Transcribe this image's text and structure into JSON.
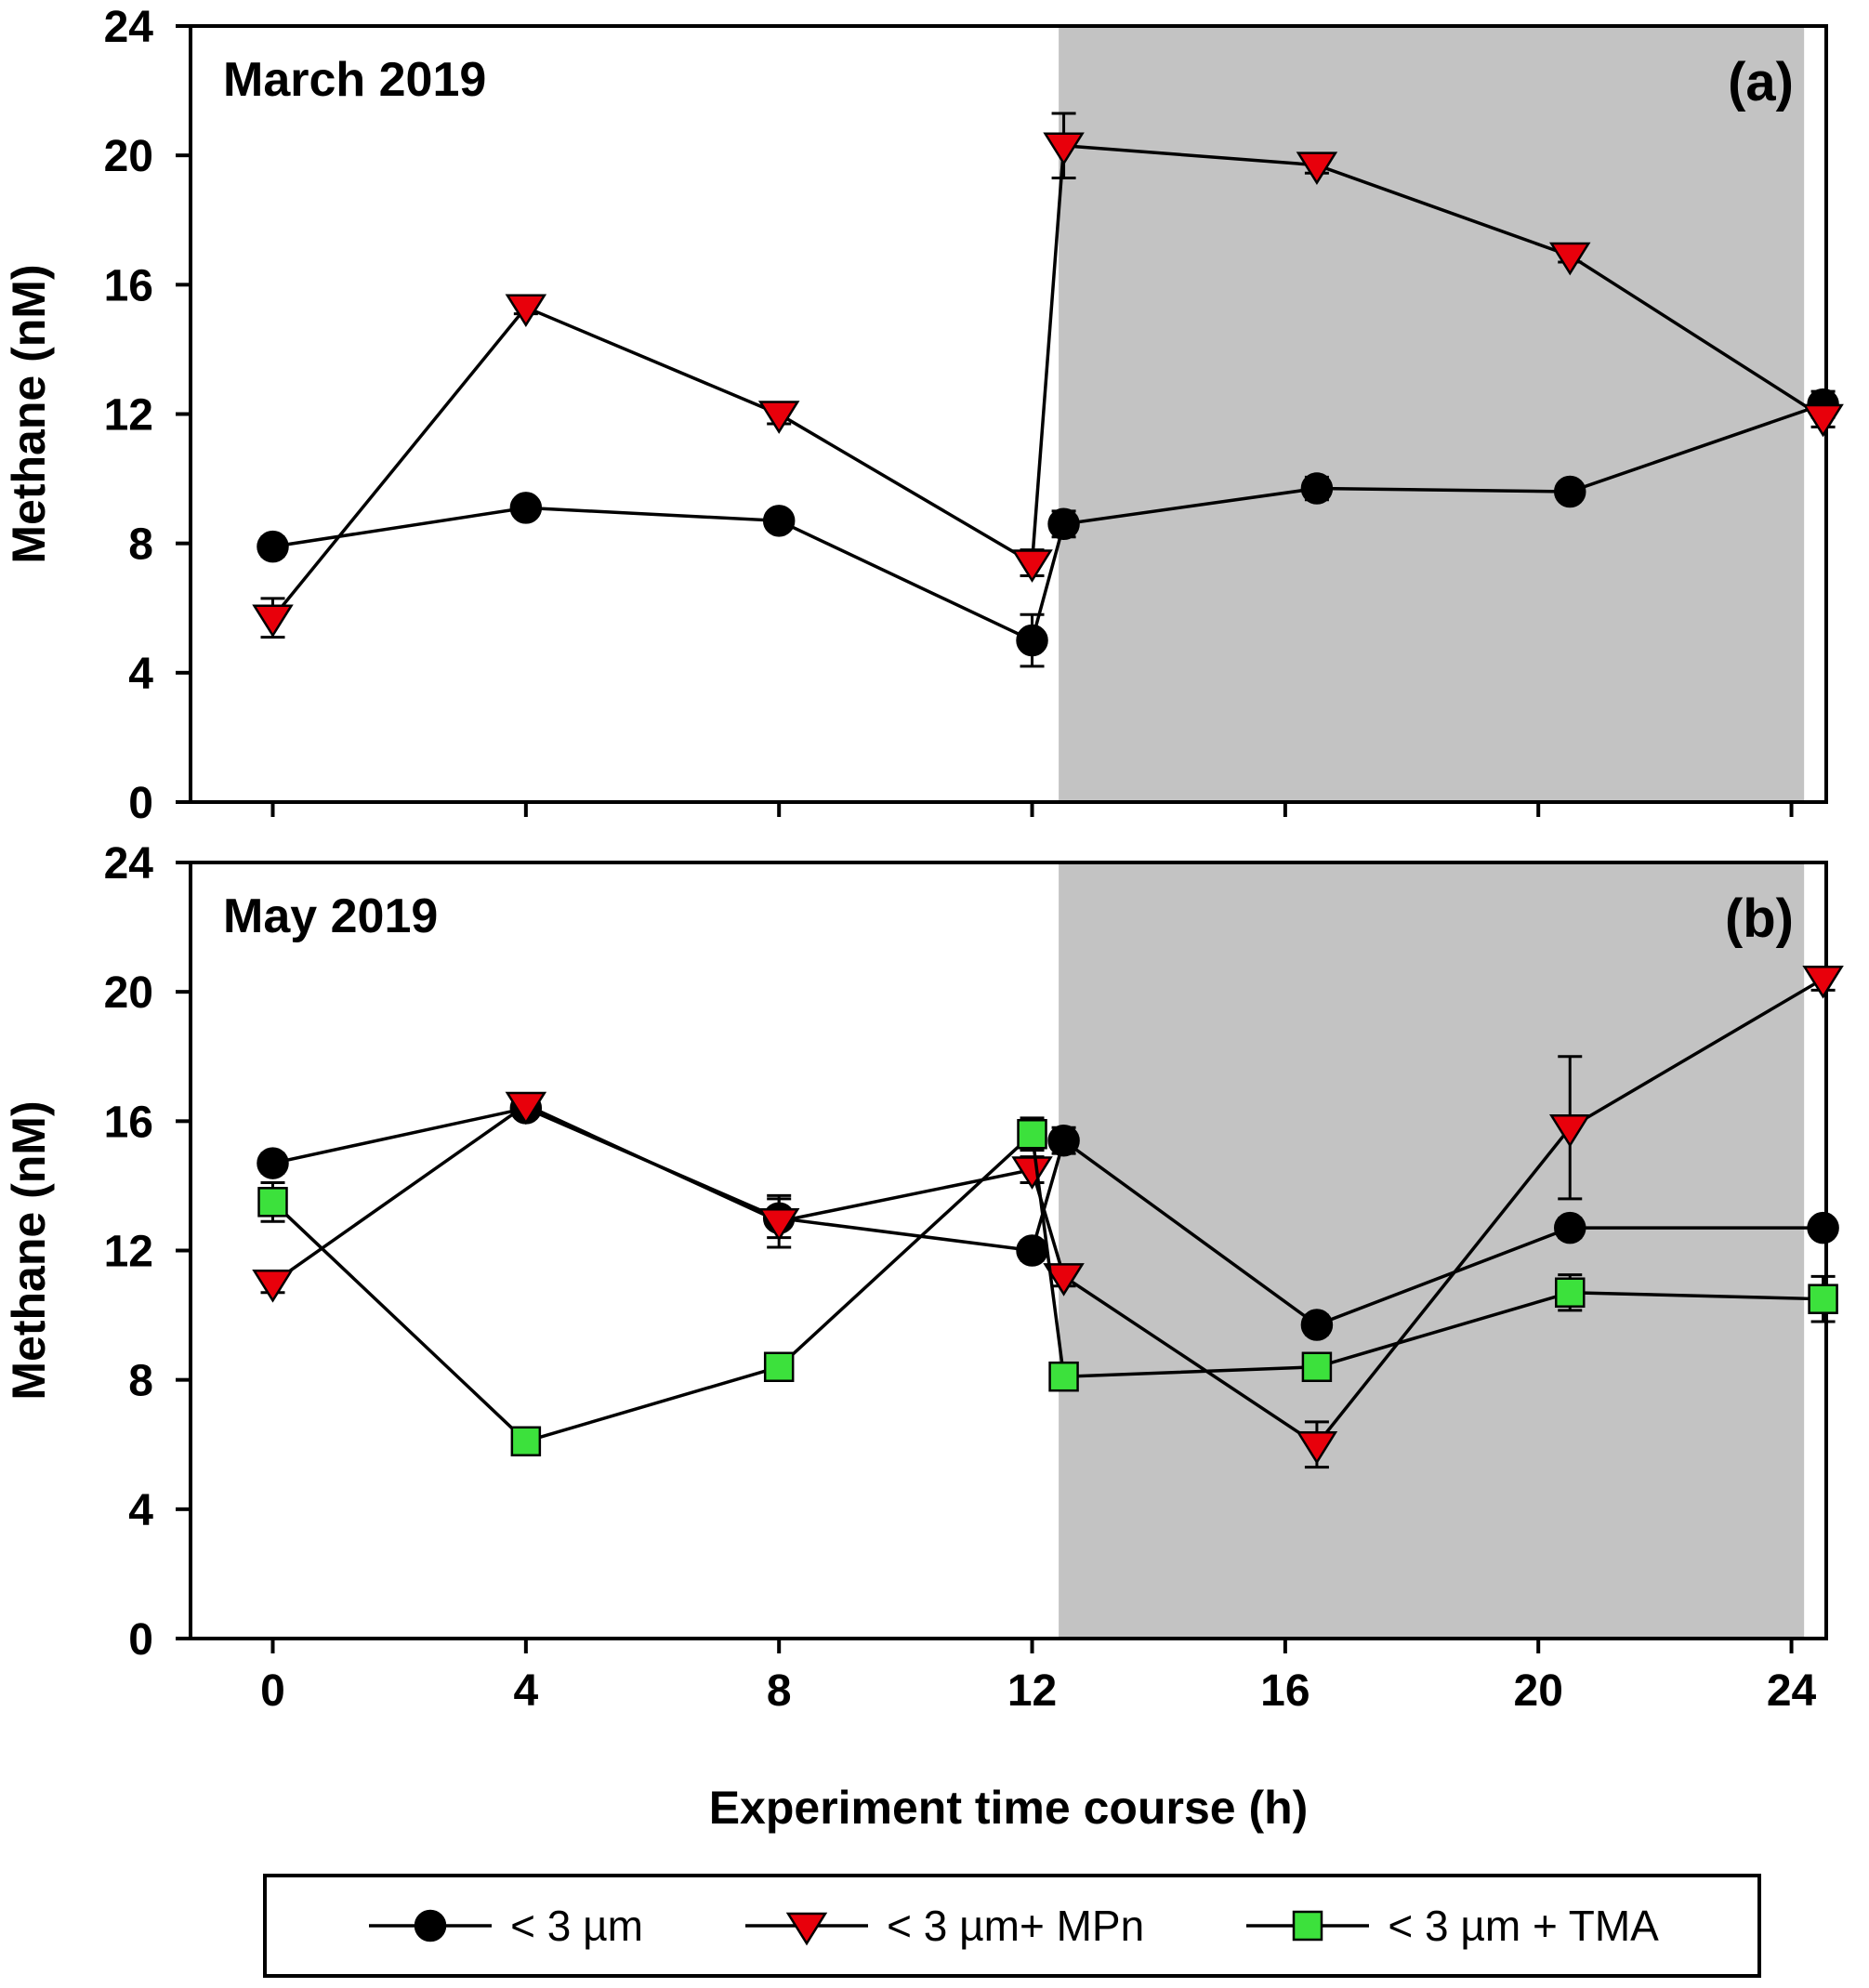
{
  "figure": {
    "xlabel": "Experiment time course (h)",
    "ylabel": "Methane (nM)",
    "background_color": "#ffffff",
    "shade_color": "#c3c3c3",
    "axis_color": "#000000",
    "line_color": "#000000"
  },
  "legend": {
    "items": [
      {
        "label": "< 3 µm",
        "marker": "circle",
        "color": "#000000"
      },
      {
        "label": "< 3 µm+ MPn",
        "marker": "triangle-down",
        "color": "#e8000b"
      },
      {
        "label": "< 3 µm + TMA",
        "marker": "square",
        "color": "#3ce13c"
      }
    ]
  },
  "chart_data": [
    {
      "type": "line",
      "panel": "(a)",
      "title": "March 2019",
      "xlabel": "Experiment time course (h)",
      "ylabel": "Methane (nM)",
      "xlim": [
        -1.3,
        24.55
      ],
      "ylim": [
        0,
        24
      ],
      "xticks": [
        0,
        4,
        8,
        12,
        16,
        20,
        24
      ],
      "yticks": [
        0,
        4,
        8,
        12,
        16,
        20,
        24
      ],
      "show_x_tick_labels": false,
      "shaded_region": {
        "x0": 12.42,
        "x1": 24.2
      },
      "x": [
        0,
        4,
        8,
        12,
        12.5,
        16.5,
        20.5,
        24.5
      ],
      "series": [
        {
          "name": "< 3 µm",
          "marker": "circle",
          "color": "#000000",
          "values": [
            7.9,
            9.1,
            8.7,
            5.0,
            8.6,
            9.7,
            9.6,
            12.3
          ],
          "yerr": [
            0.3,
            0.15,
            0.2,
            0.8,
            0.4,
            0.35,
            0.15,
            0.4
          ]
        },
        {
          "name": "< 3 µm+ MPn",
          "marker": "triangle-down",
          "color": "#e8000b",
          "values": [
            5.7,
            15.3,
            12.0,
            7.4,
            20.3,
            19.7,
            16.9,
            11.9
          ],
          "yerr": [
            0.6,
            0.2,
            0.3,
            0.4,
            1.0,
            0.25,
            0.2,
            0.3
          ]
        }
      ]
    },
    {
      "type": "line",
      "panel": "(b)",
      "title": "May 2019",
      "xlabel": "Experiment time course (h)",
      "ylabel": "Methane (nM)",
      "xlim": [
        -1.3,
        24.55
      ],
      "ylim": [
        0,
        24
      ],
      "xticks": [
        0,
        4,
        8,
        12,
        16,
        20,
        24
      ],
      "yticks": [
        0,
        4,
        8,
        12,
        16,
        20,
        24
      ],
      "show_x_tick_labels": true,
      "shaded_region": {
        "x0": 12.42,
        "x1": 24.2
      },
      "x": [
        0,
        4,
        8,
        12,
        12.5,
        16.5,
        20.5,
        24.5
      ],
      "series": [
        {
          "name": "< 3 µm",
          "marker": "circle",
          "color": "#000000",
          "values": [
            14.7,
            16.4,
            13.0,
            12.0,
            15.4,
            9.7,
            12.7,
            12.7
          ],
          "yerr": [
            0.3,
            0.2,
            0.6,
            0.3,
            0.4,
            0.3,
            0.3,
            0.25
          ]
        },
        {
          "name": "< 3 µm+ MPn",
          "marker": "triangle-down",
          "color": "#e8000b",
          "values": [
            11.0,
            16.5,
            12.9,
            14.5,
            11.2,
            6.0,
            15.8,
            20.4
          ],
          "yerr": [
            0.3,
            0.2,
            0.8,
            0.4,
            0.3,
            0.7,
            2.2,
            0.35
          ]
        },
        {
          "name": "< 3 µm + TMA",
          "marker": "square",
          "color": "#3ce13c",
          "values": [
            13.5,
            6.1,
            8.4,
            15.6,
            8.1,
            8.4,
            10.7,
            10.5
          ],
          "yerr": [
            0.6,
            0.2,
            0.25,
            0.5,
            0.2,
            0.3,
            0.55,
            0.7
          ]
        }
      ]
    }
  ]
}
